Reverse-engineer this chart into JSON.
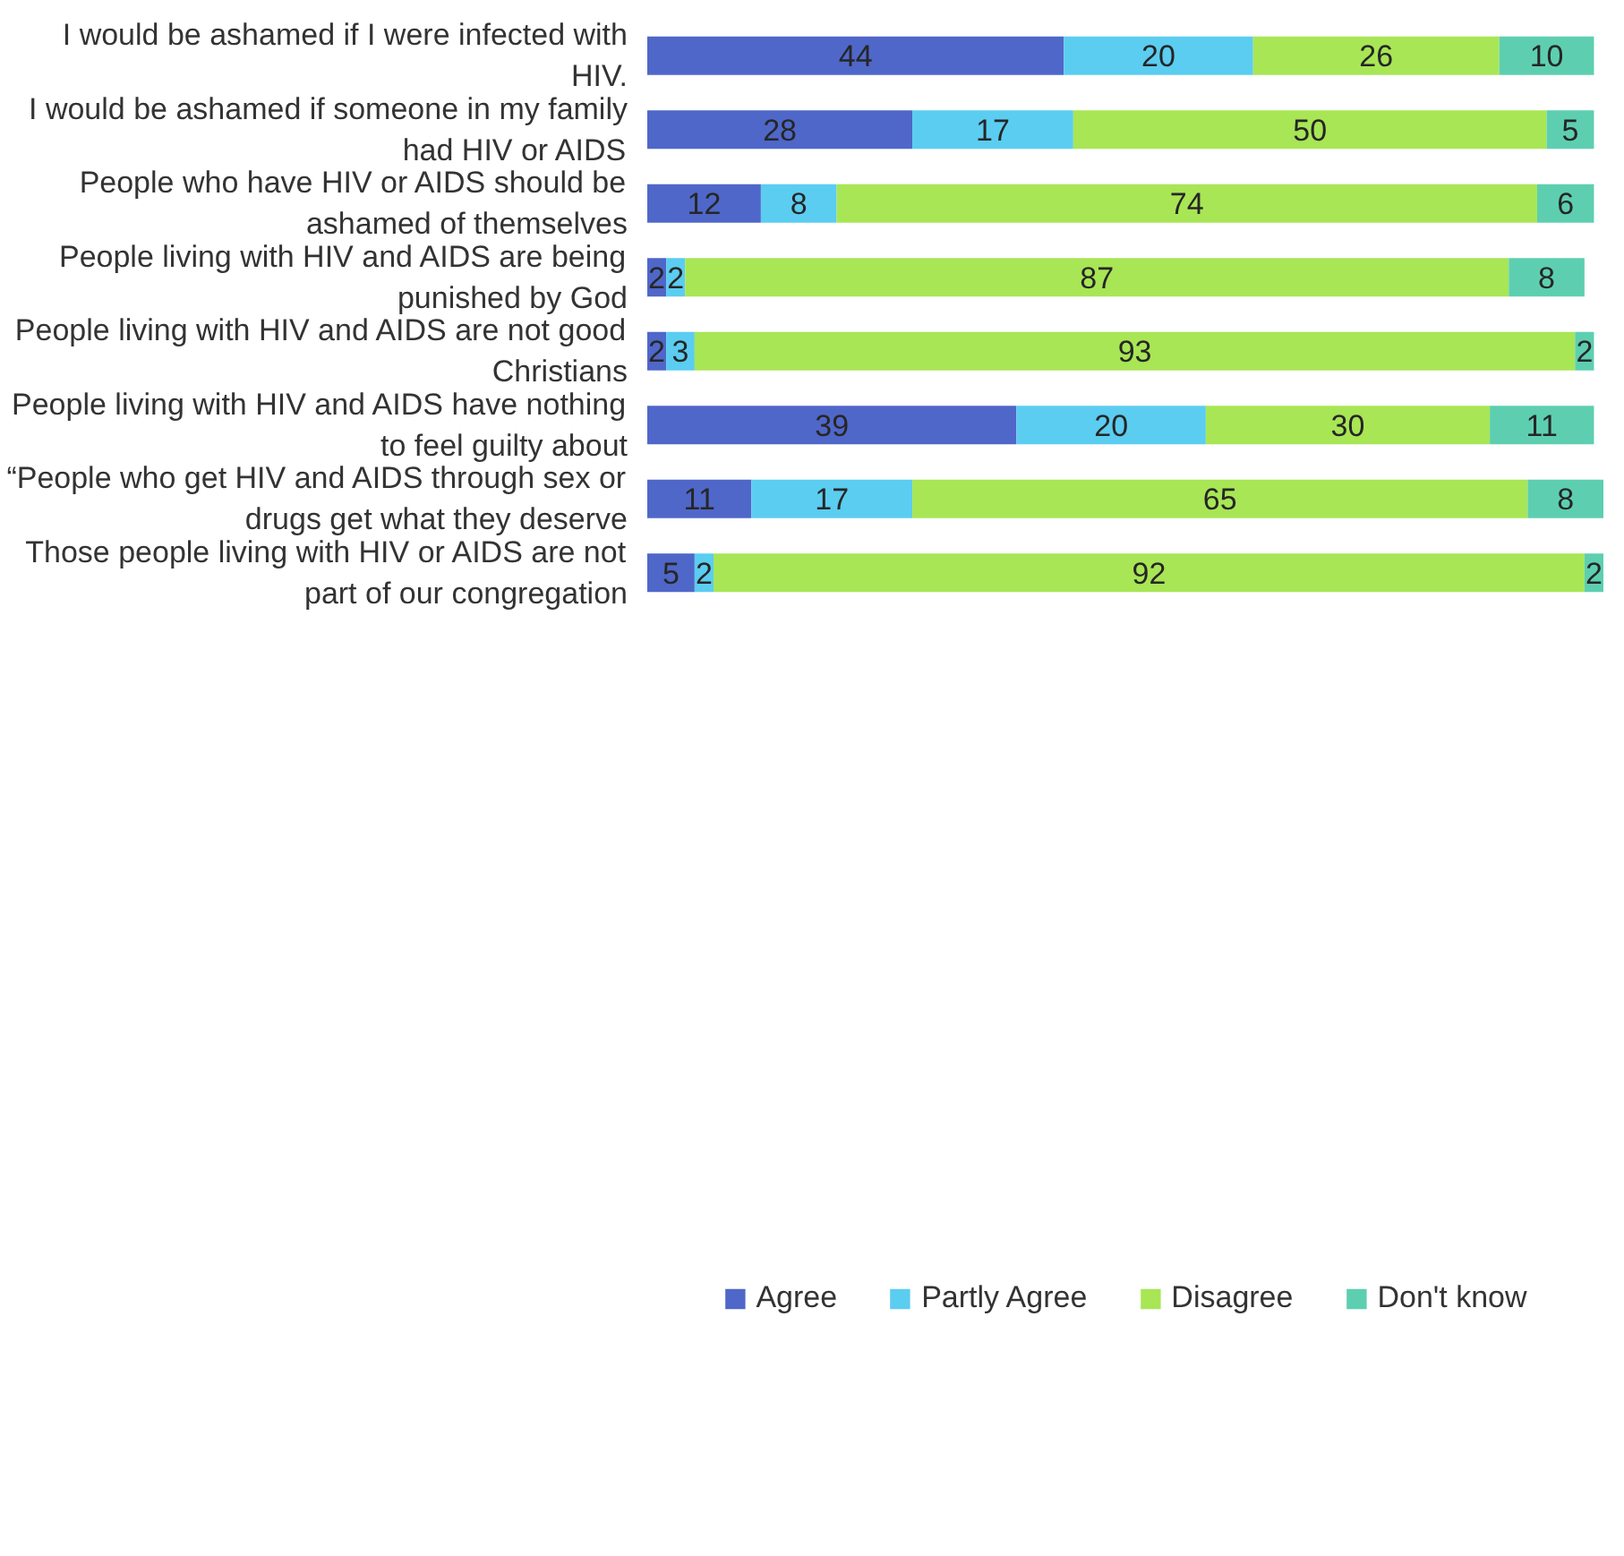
{
  "chart_data": {
    "type": "bar",
    "orientation": "horizontal",
    "stacked": true,
    "data_labels": true,
    "legend": "bottom",
    "grid": false,
    "tick_labels": "y",
    "xlim": [
      0,
      101
    ],
    "categories": [
      "I would be ashamed if I were infected with HIV.",
      "I would be ashamed if someone in my family had HIV or AIDS",
      "People who have HIV or AIDS should be ashamed of themselves",
      "People living with HIV and AIDS are being punished by God",
      "People living with HIV and AIDS are not good Christians",
      "People living with HIV and AIDS have nothing to feel guilty about",
      "“People who get HIV and AIDS through sex or drugs get what they deserve",
      "Those people living with HIV or AIDS are not part of our congregation"
    ],
    "series": [
      {
        "name": "Agree",
        "color": "#4f67c9",
        "values": [
          44,
          28,
          12,
          2,
          2,
          39,
          11,
          5
        ]
      },
      {
        "name": "Partly Agree",
        "color": "#5bcdf0",
        "values": [
          20,
          17,
          8,
          2,
          3,
          20,
          17,
          2
        ]
      },
      {
        "name": "Disagree",
        "color": "#a8e655",
        "values": [
          26,
          50,
          74,
          87,
          93,
          30,
          65,
          92
        ]
      },
      {
        "name": "Don't know",
        "color": "#5dcfb0",
        "values": [
          10,
          5,
          6,
          8,
          2,
          11,
          8,
          2
        ]
      }
    ]
  }
}
